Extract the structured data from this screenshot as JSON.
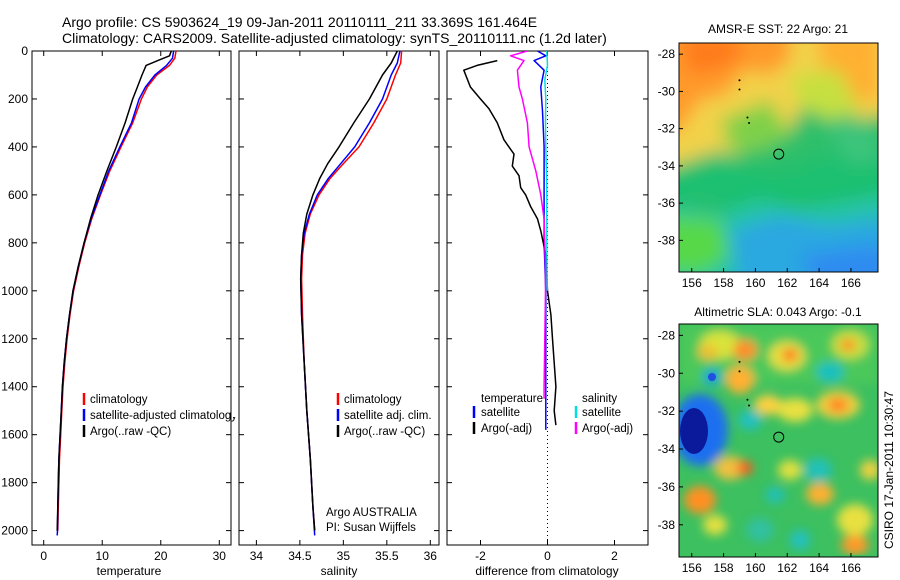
{
  "header": {
    "line1": "Argo profile: CS 5903624_19 09-Jan-2011 20110111_211 33.369S 161.464E",
    "line2": "Climatology: CARS2009. Satellite-adjusted climatology: synTS_20110111.nc (1.2d later)"
  },
  "credit": "CSIRO 17-Jan-2011 10:30:47",
  "colors": {
    "red": "#ff0000",
    "blue": "#0000ff",
    "black": "#000000",
    "cyan": "#00e0e0",
    "magenta": "#ff00ff"
  },
  "chart_data": [
    {
      "type": "line",
      "panel": "temperature",
      "xlabel": "temperature",
      "xlim": [
        -2,
        32
      ],
      "ylim": [
        0,
        2060
      ],
      "y_reversed": true,
      "xticks": [
        0,
        10,
        20,
        30
      ],
      "yticks": [
        0,
        200,
        400,
        600,
        800,
        1000,
        1200,
        1400,
        1600,
        1800,
        2000
      ],
      "legend": {
        "position": "lower-right",
        "entries": [
          {
            "label": "climatology",
            "color": "#ff0000"
          },
          {
            "label": "satellite-adjusted climatology",
            "color": "#0000ff"
          },
          {
            "label": "Argo(..raw -QC)",
            "color": "#000000"
          }
        ]
      },
      "series": [
        {
          "name": "climatology",
          "color": "#ff0000",
          "points": [
            [
              22.6,
              0
            ],
            [
              22.4,
              30
            ],
            [
              21.5,
              60
            ],
            [
              19.3,
              100
            ],
            [
              17.7,
              150
            ],
            [
              16.7,
              200
            ],
            [
              15.2,
              300
            ],
            [
              13.2,
              400
            ],
            [
              11.3,
              500
            ],
            [
              9.7,
              600
            ],
            [
              8.2,
              700
            ],
            [
              7.0,
              800
            ],
            [
              6.0,
              900
            ],
            [
              5.1,
              1000
            ],
            [
              4.5,
              1100
            ],
            [
              4.0,
              1200
            ],
            [
              3.6,
              1300
            ],
            [
              3.3,
              1400
            ],
            [
              3.1,
              1500
            ],
            [
              2.9,
              1600
            ],
            [
              2.7,
              1700
            ],
            [
              2.6,
              1800
            ],
            [
              2.5,
              1900
            ],
            [
              2.4,
              2000
            ]
          ]
        },
        {
          "name": "satellite-adjusted climatology",
          "color": "#0000ff",
          "points": [
            [
              22.2,
              0
            ],
            [
              22.0,
              30
            ],
            [
              21.0,
              60
            ],
            [
              19.0,
              100
            ],
            [
              17.4,
              150
            ],
            [
              16.3,
              200
            ],
            [
              15.0,
              300
            ],
            [
              13.0,
              400
            ],
            [
              11.1,
              500
            ],
            [
              9.6,
              600
            ],
            [
              8.1,
              700
            ],
            [
              6.9,
              800
            ],
            [
              5.9,
              900
            ],
            [
              5.0,
              1000
            ],
            [
              4.4,
              1100
            ],
            [
              3.9,
              1200
            ],
            [
              3.5,
              1300
            ],
            [
              3.2,
              1400
            ],
            [
              3.0,
              1500
            ],
            [
              2.8,
              1600
            ],
            [
              2.6,
              1700
            ],
            [
              2.5,
              1800
            ],
            [
              2.4,
              1900
            ],
            [
              2.35,
              2000
            ],
            [
              2.3,
              2020
            ]
          ]
        },
        {
          "name": "Argo(..raw -QC)",
          "color": "#000000",
          "points": [
            [
              21.8,
              0
            ],
            [
              21.5,
              20
            ],
            [
              19.5,
              40
            ],
            [
              17.5,
              60
            ],
            [
              16.8,
              100
            ],
            [
              16.0,
              150
            ],
            [
              15.2,
              200
            ],
            [
              13.9,
              300
            ],
            [
              12.4,
              400
            ],
            [
              10.8,
              500
            ],
            [
              9.3,
              600
            ],
            [
              8.0,
              700
            ],
            [
              6.9,
              800
            ],
            [
              5.9,
              900
            ],
            [
              5.0,
              1000
            ],
            [
              4.4,
              1100
            ],
            [
              3.9,
              1200
            ],
            [
              3.5,
              1300
            ],
            [
              3.2,
              1400
            ],
            [
              3.0,
              1500
            ],
            [
              2.8,
              1600
            ],
            [
              2.6,
              1700
            ],
            [
              2.5,
              1800
            ],
            [
              2.4,
              1900
            ],
            [
              2.3,
              2000
            ]
          ]
        }
      ]
    },
    {
      "type": "line",
      "panel": "salinity",
      "xlabel": "salinity",
      "xlim": [
        33.8,
        36.1
      ],
      "ylim": [
        0,
        2060
      ],
      "y_reversed": true,
      "xticks": [
        34,
        34.5,
        35,
        35.5,
        36
      ],
      "legend": {
        "position": "lower-right",
        "entries": [
          {
            "label": "climatology",
            "color": "#ff0000"
          },
          {
            "label": "satellite adj. clim.",
            "color": "#0000ff"
          },
          {
            "label": "Argo(..raw -QC)",
            "color": "#000000"
          }
        ]
      },
      "annotations": [
        "Argo AUSTRALIA",
        "PI: Susan Wijffels"
      ],
      "series": [
        {
          "name": "climatology",
          "color": "#ff0000",
          "points": [
            [
              35.67,
              0
            ],
            [
              35.66,
              50
            ],
            [
              35.6,
              100
            ],
            [
              35.5,
              200
            ],
            [
              35.35,
              300
            ],
            [
              35.18,
              400
            ],
            [
              35.0,
              470
            ],
            [
              34.85,
              530
            ],
            [
              34.72,
              600
            ],
            [
              34.62,
              680
            ],
            [
              34.56,
              760
            ],
            [
              34.53,
              850
            ],
            [
              34.52,
              950
            ],
            [
              34.53,
              1100
            ],
            [
              34.55,
              1300
            ],
            [
              34.58,
              1500
            ],
            [
              34.62,
              1700
            ],
            [
              34.65,
              1900
            ],
            [
              34.67,
              2000
            ]
          ]
        },
        {
          "name": "satellite adj. clim.",
          "color": "#0000ff",
          "points": [
            [
              35.65,
              0
            ],
            [
              35.62,
              50
            ],
            [
              35.55,
              100
            ],
            [
              35.45,
              200
            ],
            [
              35.3,
              300
            ],
            [
              35.13,
              400
            ],
            [
              34.97,
              470
            ],
            [
              34.83,
              530
            ],
            [
              34.7,
              600
            ],
            [
              34.61,
              680
            ],
            [
              34.55,
              760
            ],
            [
              34.52,
              850
            ],
            [
              34.51,
              950
            ],
            [
              34.52,
              1100
            ],
            [
              34.55,
              1300
            ],
            [
              34.58,
              1500
            ],
            [
              34.62,
              1700
            ],
            [
              34.65,
              1900
            ],
            [
              34.67,
              2020
            ]
          ]
        },
        {
          "name": "Argo(..raw -QC)",
          "color": "#000000",
          "points": [
            [
              35.62,
              0
            ],
            [
              35.55,
              50
            ],
            [
              35.45,
              100
            ],
            [
              35.3,
              200
            ],
            [
              35.12,
              300
            ],
            [
              34.95,
              400
            ],
            [
              34.82,
              470
            ],
            [
              34.73,
              530
            ],
            [
              34.65,
              600
            ],
            [
              34.58,
              680
            ],
            [
              34.54,
              760
            ],
            [
              34.52,
              850
            ],
            [
              34.51,
              950
            ],
            [
              34.52,
              1100
            ],
            [
              34.55,
              1300
            ],
            [
              34.58,
              1500
            ],
            [
              34.62,
              1700
            ],
            [
              34.65,
              1900
            ],
            [
              34.67,
              2000
            ]
          ]
        }
      ]
    },
    {
      "type": "line",
      "panel": "difference",
      "xlabel": "difference from climatology",
      "xlim": [
        -3,
        3
      ],
      "ylim": [
        0,
        2060
      ],
      "y_reversed": true,
      "xticks": [
        -2,
        0,
        2
      ],
      "zero_line": "dotted",
      "legend": {
        "position": "lower",
        "groups": [
          {
            "title": "temperature",
            "entries": [
              {
                "label": "satellite",
                "color": "#0000ff"
              },
              {
                "label": "Argo(-adj)",
                "color": "#000000"
              }
            ]
          },
          {
            "title": "salinity",
            "entries": [
              {
                "label": "satellite",
                "color": "#00e0e0"
              },
              {
                "label": "Argo(-adj)",
                "color": "#ff00ff"
              }
            ]
          }
        ]
      },
      "series": [
        {
          "name": "temperature satellite",
          "color": "#0000ff",
          "points": [
            [
              -0.3,
              0
            ],
            [
              -0.05,
              20
            ],
            [
              -0.4,
              40
            ],
            [
              -0.1,
              80
            ],
            [
              -0.2,
              150
            ],
            [
              -0.15,
              250
            ],
            [
              -0.1,
              400
            ],
            [
              -0.1,
              600
            ],
            [
              -0.1,
              800
            ],
            [
              -0.05,
              1000
            ],
            [
              -0.05,
              1200
            ],
            [
              -0.05,
              1400
            ],
            [
              -0.05,
              1580
            ]
          ]
        },
        {
          "name": "temperature Argo(-adj)",
          "color": "#000000",
          "points": [
            [
              -1.5,
              40
            ],
            [
              -2.1,
              60
            ],
            [
              -2.5,
              80
            ],
            [
              -2.3,
              150
            ],
            [
              -2.0,
              200
            ],
            [
              -1.75,
              240
            ],
            [
              -1.5,
              300
            ],
            [
              -1.3,
              370
            ],
            [
              -1.1,
              410
            ],
            [
              -1.0,
              430
            ],
            [
              -1.05,
              480
            ],
            [
              -0.85,
              520
            ],
            [
              -0.8,
              570
            ],
            [
              -0.65,
              600
            ],
            [
              -0.5,
              650
            ],
            [
              -0.3,
              700
            ],
            [
              -0.2,
              750
            ],
            [
              -0.05,
              850
            ],
            [
              0.0,
              1000
            ],
            [
              0.1,
              1100
            ],
            [
              0.15,
              1200
            ],
            [
              0.2,
              1300
            ],
            [
              0.25,
              1400
            ],
            [
              0.2,
              1500
            ],
            [
              0.25,
              1560
            ]
          ]
        },
        {
          "name": "salinity satellite",
          "color": "#00e0e0",
          "points": [
            [
              -0.02,
              0
            ],
            [
              0.0,
              60
            ],
            [
              -0.08,
              120
            ],
            [
              -0.05,
              200
            ],
            [
              -0.06,
              300
            ],
            [
              -0.05,
              400
            ],
            [
              -0.03,
              500
            ],
            [
              -0.02,
              600
            ],
            [
              -0.02,
              800
            ],
            [
              -0.01,
              1000
            ]
          ]
        },
        {
          "name": "salinity Argo(-adj)",
          "color": "#ff00ff",
          "points": [
            [
              -0.6,
              0
            ],
            [
              -1.1,
              20
            ],
            [
              -0.7,
              40
            ],
            [
              -0.9,
              80
            ],
            [
              -0.85,
              150
            ],
            [
              -0.75,
              200
            ],
            [
              -0.6,
              300
            ],
            [
              -0.55,
              400
            ],
            [
              -0.35,
              500
            ],
            [
              -0.2,
              600
            ],
            [
              -0.1,
              700
            ],
            [
              -0.08,
              800
            ],
            [
              -0.06,
              900
            ],
            [
              -0.06,
              1000
            ],
            [
              -0.08,
              1200
            ],
            [
              -0.1,
              1400
            ],
            [
              -0.1,
              1450
            ]
          ]
        }
      ]
    },
    {
      "type": "heatmap",
      "panel": "sst-map",
      "title": "AMSR-E SST: 22 Argo: 21",
      "xlim": [
        155.2,
        167.7
      ],
      "ylim": [
        -39.7,
        -27.4
      ],
      "xticks": [
        156,
        158,
        160,
        162,
        164,
        166
      ],
      "yticks": [
        -28,
        -30,
        -32,
        -34,
        -36,
        -38
      ],
      "marker": {
        "lon": 161.464,
        "lat": -33.369
      },
      "track": [
        [
          159.0,
          -29.4
        ],
        [
          159.0,
          -29.9
        ],
        [
          159.5,
          -31.4
        ],
        [
          159.6,
          -31.7
        ]
      ]
    },
    {
      "type": "heatmap",
      "panel": "sla-map",
      "title": "Altimetric SLA: 0.043 Argo: -0.1",
      "xlim": [
        155.2,
        167.7
      ],
      "ylim": [
        -39.7,
        -27.4
      ],
      "xticks": [
        156,
        158,
        160,
        162,
        164,
        166
      ],
      "yticks": [
        -28,
        -30,
        -32,
        -34,
        -36,
        -38
      ],
      "marker": {
        "lon": 161.464,
        "lat": -33.369
      },
      "track": [
        [
          159.0,
          -29.4
        ],
        [
          159.0,
          -29.9
        ],
        [
          159.5,
          -31.4
        ],
        [
          159.6,
          -31.7
        ]
      ]
    }
  ]
}
